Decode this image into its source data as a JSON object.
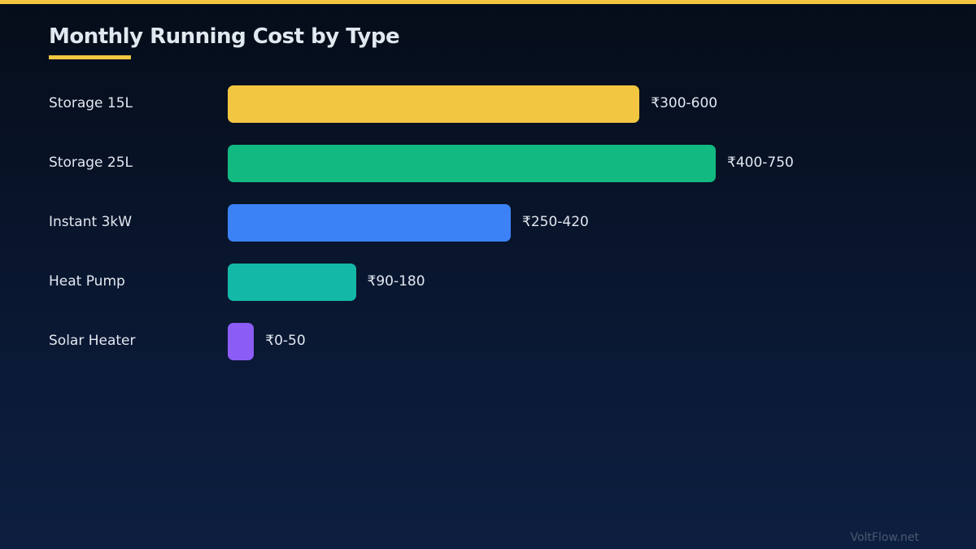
{
  "accent_color": "#f2c641",
  "chart_data": {
    "type": "bar",
    "orientation": "horizontal",
    "title": "Monthly Running Cost by Type",
    "categories": [
      "Storage 15L",
      "Storage 25L",
      "Instant 3kW",
      "Heat Pump",
      "Solar Heater"
    ],
    "value_labels": [
      "₹300-600",
      "₹400-750",
      "₹250-420",
      "₹90-180",
      "₹0-50"
    ],
    "ranges": [
      [
        300,
        600
      ],
      [
        400,
        750
      ],
      [
        250,
        420
      ],
      [
        90,
        180
      ],
      [
        0,
        50
      ]
    ],
    "bar_levels_percent": [
      67.5,
      80,
      46.4,
      21,
      4.3
    ],
    "colors": [
      "#f2c641",
      "#12b981",
      "#3b82f6",
      "#14b8a6",
      "#8b5cf6"
    ],
    "grid": false,
    "legend": "none"
  },
  "footer": {
    "brand": "VoltFlow.net"
  }
}
